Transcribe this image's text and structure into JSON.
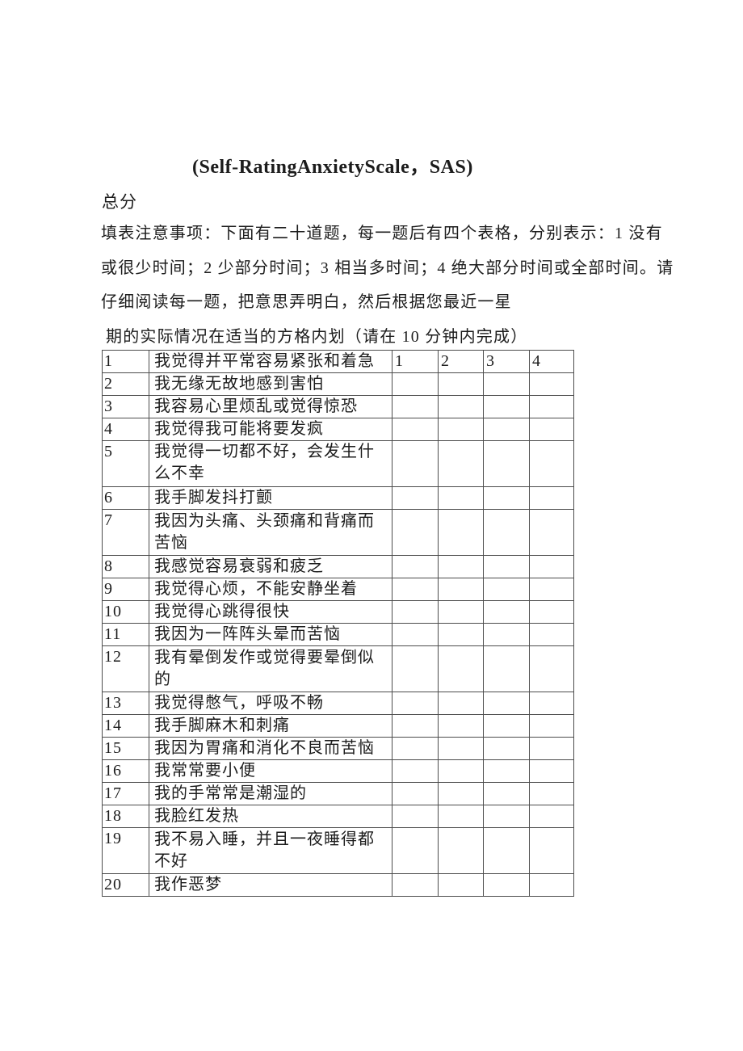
{
  "colors": {
    "background": "#ffffff",
    "text": "#1c1c1c",
    "table_border": "#4d4d4d"
  },
  "document": {
    "title": "(Self-RatingAnxietyScale，SAS)",
    "score_label": "总分",
    "instructions": [
      "填表注意事项：下面有二十道题，每一题后有四个表格，分别表示：1 没有",
      "或很少时间；2 少部分时间；3 相当多时间；4 绝大部分时间或全部时间。请",
      "仔细阅读每一题，把意思弄明白，然后根据您最近一星",
      "期的实际情况在适当的方格内划（请在 10 分钟内完成）"
    ]
  },
  "table": {
    "answer_headers": [
      "1",
      "2",
      "3",
      "4"
    ],
    "rows": [
      {
        "no": "1",
        "text": "我觉得并平常容易紧张和着急",
        "tall": false,
        "text_position": "top"
      },
      {
        "no": "2",
        "text": "我无缘无故地感到害怕",
        "tall": false,
        "text_position": "top"
      },
      {
        "no": "3",
        "text": "我容易心里烦乱或觉得惊恐",
        "tall": false,
        "text_position": "top"
      },
      {
        "no": "4",
        "text": "我觉得我可能将要发疯",
        "tall": false,
        "text_position": "top"
      },
      {
        "no": "5",
        "text": "我觉得一切都不好，会发生什么不幸",
        "tall": true,
        "text_position": "top"
      },
      {
        "no": "6",
        "text": "我手脚发抖打颤",
        "tall": false,
        "text_position": "top"
      },
      {
        "no": "7",
        "text": "我因为头痛、头颈痛和背痛而苦恼",
        "tall": true,
        "text_position": "bottom"
      },
      {
        "no": "8",
        "text": "我感觉容易衰弱和疲乏",
        "tall": false,
        "text_position": "top"
      },
      {
        "no": "9",
        "text": "我觉得心烦，不能安静坐着",
        "tall": false,
        "text_position": "top"
      },
      {
        "no": "10",
        "text": "我觉得心跳得很快",
        "tall": false,
        "text_position": "top"
      },
      {
        "no": "11",
        "text": "我因为一阵阵头晕而苦恼",
        "tall": false,
        "text_position": "top"
      },
      {
        "no": "12",
        "text": "我有晕倒发作或觉得要晕倒似的",
        "tall": true,
        "text_position": "bottom"
      },
      {
        "no": "13",
        "text": "我觉得憋气，呼吸不畅",
        "tall": false,
        "text_position": "top"
      },
      {
        "no": "14",
        "text": "我手脚麻木和刺痛",
        "tall": false,
        "text_position": "top"
      },
      {
        "no": "15",
        "text": "我因为胃痛和消化不良而苦恼",
        "tall": false,
        "text_position": "top"
      },
      {
        "no": "16",
        "text": "我常常要小便",
        "tall": false,
        "text_position": "top"
      },
      {
        "no": "17",
        "text": "我的手常常是潮湿的",
        "tall": false,
        "text_position": "top"
      },
      {
        "no": "18",
        "text": "我脸红发热",
        "tall": false,
        "text_position": "top"
      },
      {
        "no": "19",
        "text": "我不易入睡，并且一夜睡得都不好",
        "tall": true,
        "text_position": "bottom"
      },
      {
        "no": "20",
        "text": "我作恶梦",
        "tall": false,
        "text_position": "top"
      }
    ]
  }
}
